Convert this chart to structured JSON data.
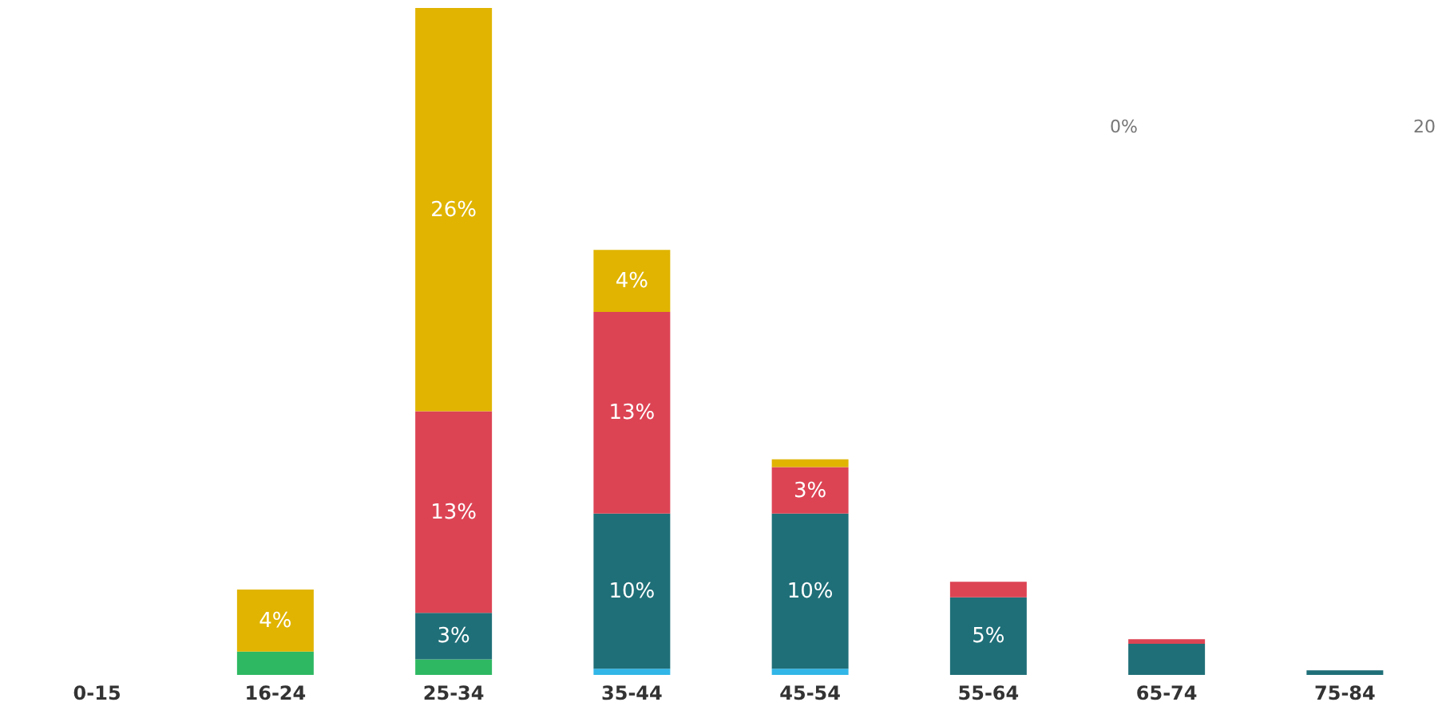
{
  "chart_data": {
    "type": "bar",
    "stacked": true,
    "categories": [
      "0-15",
      "16-24",
      "25-34",
      "35-44",
      "45-54",
      "55-64",
      "65-74",
      "75-84"
    ],
    "series": [
      {
        "color": "#2eb862",
        "values": [
          null,
          1.5,
          1,
          null,
          null,
          null,
          null,
          null
        ],
        "value_labels": [
          null,
          null,
          null,
          null,
          null,
          null,
          null,
          null
        ]
      },
      {
        "color": "#31b6e7",
        "values": [
          null,
          null,
          null,
          0.4,
          0.4,
          null,
          null,
          null
        ],
        "value_labels": [
          null,
          null,
          null,
          null,
          null,
          null,
          null,
          null
        ]
      },
      {
        "color": "#1f6f78",
        "values": [
          null,
          null,
          3,
          10,
          10,
          5,
          2,
          0.3
        ],
        "value_labels": [
          null,
          null,
          "3%",
          "10%",
          "10%",
          "5%",
          null,
          null
        ]
      },
      {
        "color": "#dc4454",
        "values": [
          null,
          null,
          13,
          13,
          3,
          1,
          0.3,
          null
        ],
        "value_labels": [
          null,
          null,
          "13%",
          "13%",
          "3%",
          null,
          null,
          null
        ]
      },
      {
        "color": "#e0b400",
        "values": [
          null,
          4,
          26,
          4,
          0.5,
          null,
          null,
          null
        ],
        "value_labels": [
          null,
          "4%",
          "26%",
          "4%",
          null,
          null,
          null,
          null
        ]
      }
    ],
    "ylim": [
      0,
      43
    ],
    "tick_labels": "x",
    "grid": false,
    "annotations": [
      "0%",
      "20"
    ]
  }
}
